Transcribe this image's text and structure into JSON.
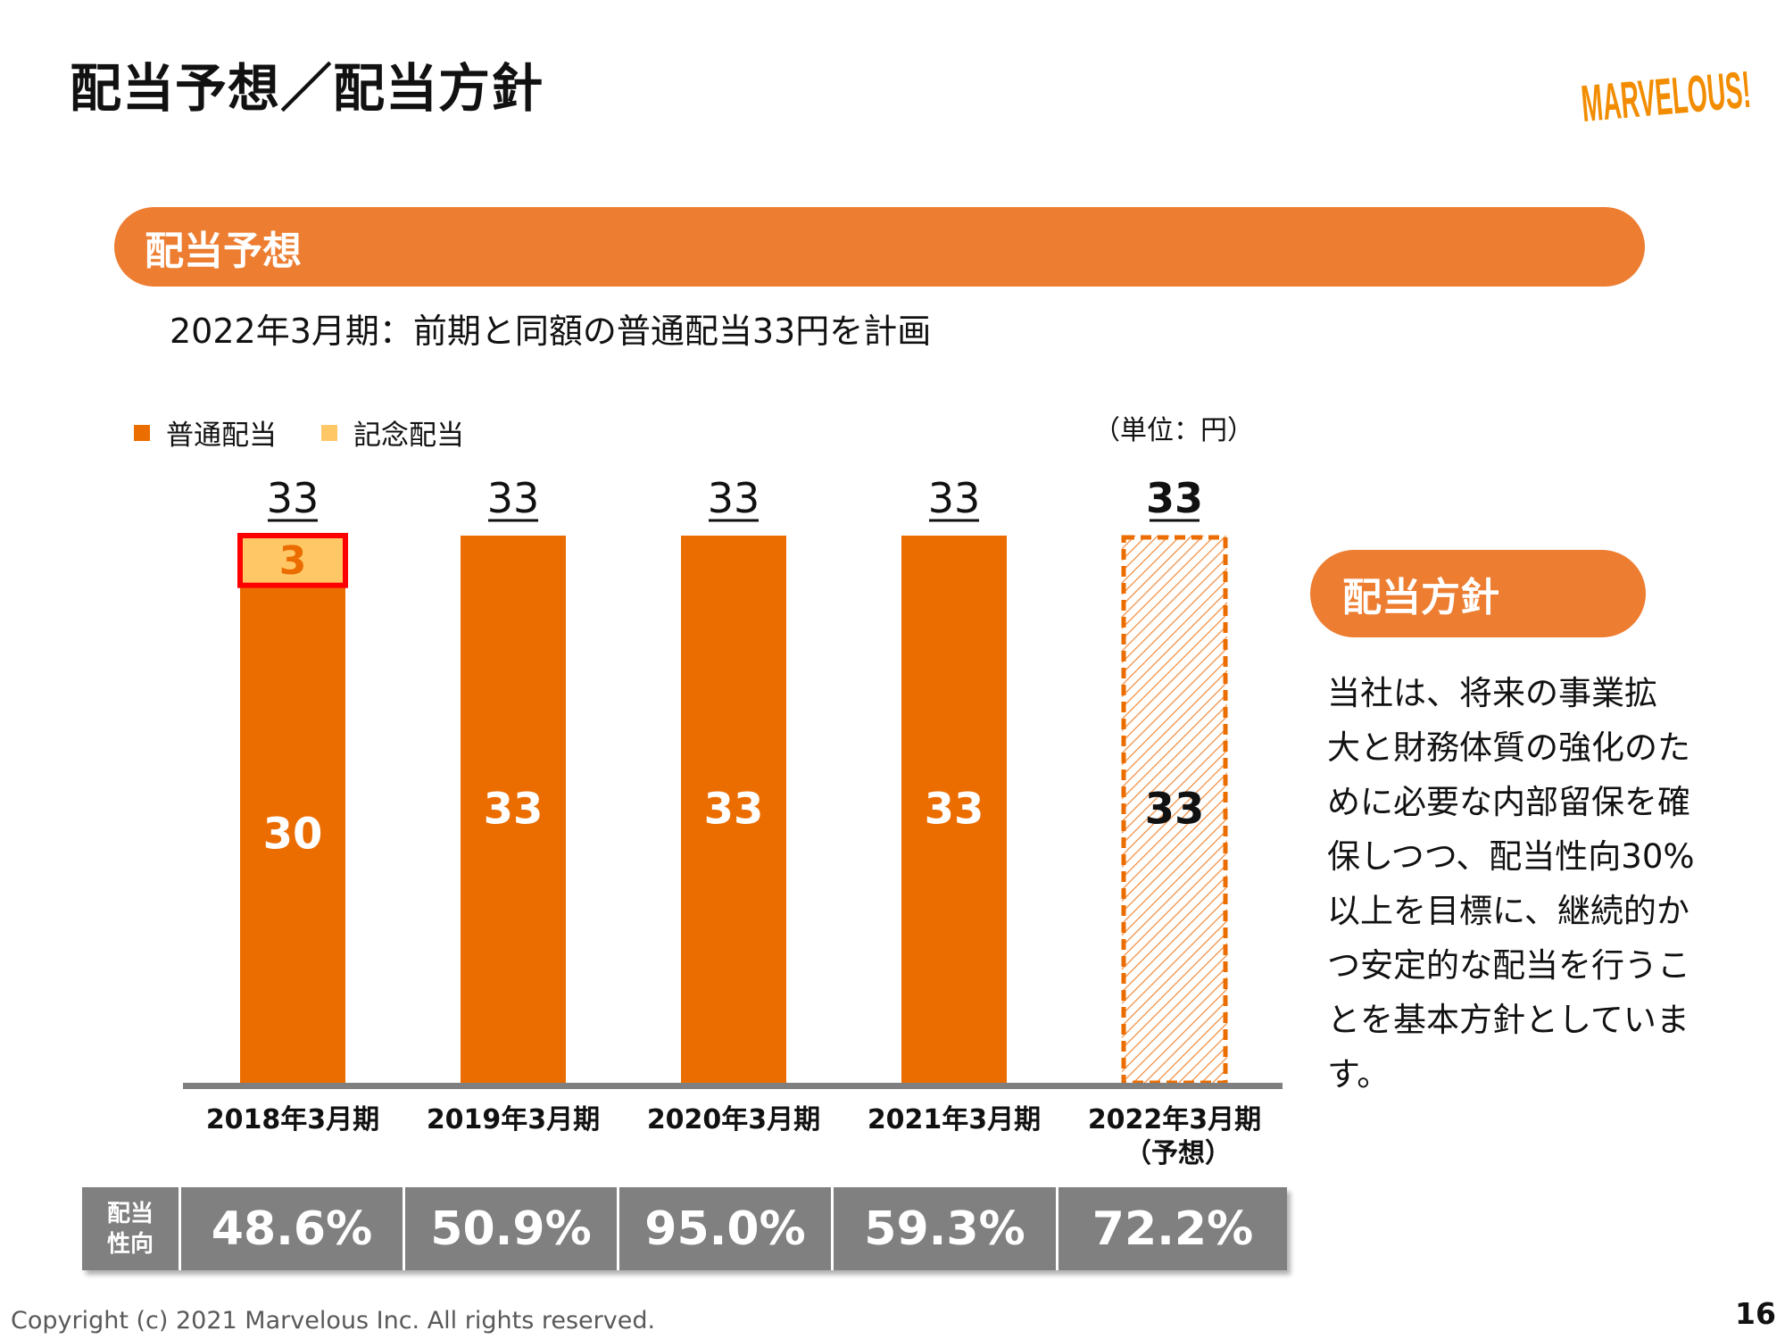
{
  "header": {
    "title": "配当予想／配当方針",
    "logo_text": "MARVELOUS!"
  },
  "section_dividend_forecast": {
    "label": "配当予想",
    "subtitle": "2022年3月期：前期と同額の普通配当33円を計画"
  },
  "legend": {
    "items": [
      {
        "label": "普通配当",
        "color": "#EB6D00"
      },
      {
        "label": "記念配当",
        "color": "#FFC766"
      }
    ]
  },
  "unit_label": "（単位：円）",
  "chart_data": {
    "type": "bar",
    "stacked": true,
    "categories": [
      "2018年3月期",
      "2019年3月期",
      "2020年3月期",
      "2021年3月期",
      "2022年3月期"
    ],
    "category_notes": [
      "",
      "",
      "",
      "",
      "（予想）"
    ],
    "series": [
      {
        "name": "普通配当",
        "values": [
          30,
          33,
          33,
          33,
          33
        ],
        "color": "#EB6D00"
      },
      {
        "name": "記念配当",
        "values": [
          3,
          0,
          0,
          0,
          0
        ],
        "color": "#FFC766"
      }
    ],
    "totals": [
      33,
      33,
      33,
      33,
      33
    ],
    "forecast_index": 4,
    "ylim": [
      0,
      33
    ],
    "grid": false,
    "legend_position": "top-left"
  },
  "payout_ratio": {
    "header_line1": "配当",
    "header_line2": "性向",
    "values": [
      "48.6%",
      "50.9%",
      "95.0%",
      "59.3%",
      "72.2%"
    ]
  },
  "section_dividend_policy": {
    "label": "配当方針",
    "text_lines": [
      "当社は、将来の事業拡",
      "大と財務体質の強化のた",
      "めに必要な内部留保を確",
      "保しつつ、配当性向30%",
      "以上を目標に、継続的か",
      "つ安定的な配当を行うこ",
      "とを基本方針としています。"
    ]
  },
  "footer": {
    "copyright": "Copyright (c) 2021 Marvelous Inc. All rights reserved.",
    "page_number": "16"
  }
}
